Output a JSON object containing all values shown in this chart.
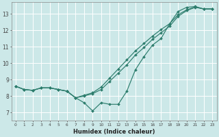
{
  "bg_color": "#cce8e8",
  "grid_color": "#ffffff",
  "line_color": "#2d7d6d",
  "marker_color": "#2d7d6d",
  "xlabel": "Humidex (Indice chaleur)",
  "xlim": [
    -0.5,
    23.5
  ],
  "ylim": [
    6.5,
    13.7
  ],
  "xticks": [
    0,
    1,
    2,
    3,
    4,
    5,
    6,
    7,
    8,
    9,
    10,
    11,
    12,
    13,
    14,
    15,
    16,
    17,
    18,
    19,
    20,
    21,
    22,
    23
  ],
  "yticks": [
    7,
    8,
    9,
    10,
    11,
    12,
    13
  ],
  "line1": {
    "x": [
      0,
      1,
      2,
      3,
      4,
      5,
      6,
      7,
      8,
      9,
      10,
      11,
      12,
      13,
      14,
      15,
      16,
      17,
      18,
      19,
      20,
      21,
      22,
      23
    ],
    "y": [
      8.6,
      8.4,
      8.35,
      8.5,
      8.5,
      8.4,
      8.3,
      7.9,
      7.6,
      7.1,
      7.6,
      7.5,
      7.5,
      8.3,
      9.6,
      10.4,
      11.1,
      11.5,
      12.4,
      13.15,
      13.4,
      13.45,
      13.3,
      13.3
    ]
  },
  "line2": {
    "x": [
      0,
      1,
      2,
      3,
      4,
      5,
      6,
      7,
      8,
      9,
      10,
      11,
      12,
      13,
      14,
      15,
      16,
      17,
      18,
      19,
      20,
      21,
      22,
      23
    ],
    "y": [
      8.6,
      8.4,
      8.35,
      8.5,
      8.5,
      8.4,
      8.3,
      7.9,
      8.0,
      8.15,
      8.4,
      8.9,
      9.4,
      9.9,
      10.5,
      10.95,
      11.45,
      11.85,
      12.25,
      12.85,
      13.2,
      13.4,
      13.3,
      13.3
    ]
  },
  "line3": {
    "x": [
      0,
      1,
      2,
      3,
      4,
      5,
      6,
      7,
      8,
      9,
      10,
      11,
      12,
      13,
      14,
      15,
      16,
      17,
      18,
      19,
      20,
      21,
      22,
      23
    ],
    "y": [
      8.6,
      8.4,
      8.35,
      8.5,
      8.5,
      8.4,
      8.3,
      7.9,
      8.05,
      8.2,
      8.55,
      9.1,
      9.65,
      10.2,
      10.75,
      11.2,
      11.65,
      12.05,
      12.4,
      12.95,
      13.25,
      13.42,
      13.3,
      13.3
    ]
  }
}
